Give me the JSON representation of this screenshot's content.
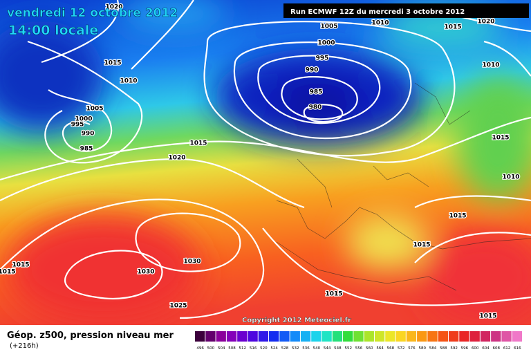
{
  "header": {
    "date": "vendredi 12 octobre 2012",
    "time": "14:00 locale",
    "run": "Run ECMWF 12Z du mercredi 3 octobre 2012"
  },
  "isobar_labels": [
    1020,
    1005,
    1010,
    1015,
    1020,
    1000,
    995,
    990,
    1010,
    1015,
    1010,
    985,
    980,
    1005,
    1000,
    995,
    990,
    985,
    1015,
    1020,
    1015,
    1010,
    1015,
    1015,
    1015,
    1015,
    1030,
    1030,
    1025,
    1015,
    1015
  ],
  "copyright": "Copyright 2012 Meteociel.fr",
  "legend": {
    "title": "Géop. z500, pression niveau mer",
    "subtitle": "(+216h)",
    "scale": [
      496,
      500,
      504,
      508,
      512,
      516,
      520,
      524,
      528,
      532,
      536,
      540,
      544,
      548,
      552,
      556,
      560,
      564,
      568,
      572,
      576,
      580,
      584,
      588,
      592,
      596,
      600,
      604,
      608,
      612,
      616
    ]
  }
}
